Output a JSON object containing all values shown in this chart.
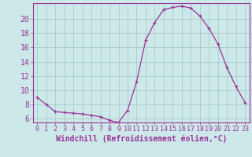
{
  "x": [
    0,
    1,
    2,
    3,
    4,
    5,
    6,
    7,
    8,
    9,
    10,
    11,
    12,
    13,
    14,
    15,
    16,
    17,
    18,
    19,
    20,
    21,
    22,
    23
  ],
  "y": [
    9.0,
    8.0,
    7.0,
    6.9,
    6.8,
    6.7,
    6.5,
    6.3,
    5.8,
    5.5,
    7.2,
    11.2,
    17.0,
    19.5,
    21.3,
    21.6,
    21.8,
    21.5,
    20.4,
    18.7,
    16.5,
    13.2,
    10.5,
    8.3
  ],
  "line_color": "#993399",
  "marker_color": "#993399",
  "bg_color": "#cce8e8",
  "grid_color": "#aacccc",
  "xlabel": "Windchill (Refroidissement éolien,°C)",
  "xlim": [
    -0.5,
    23.5
  ],
  "ylim": [
    5.5,
    22.2
  ],
  "yticks": [
    6,
    8,
    10,
    12,
    14,
    16,
    18,
    20
  ],
  "xticks": [
    0,
    1,
    2,
    3,
    4,
    5,
    6,
    7,
    8,
    9,
    10,
    11,
    12,
    13,
    14,
    15,
    16,
    17,
    18,
    19,
    20,
    21,
    22,
    23
  ],
  "axis_color": "#993399",
  "tick_color": "#993399",
  "xlabel_fontsize": 7,
  "ytick_fontsize": 7,
  "xtick_fontsize": 6
}
